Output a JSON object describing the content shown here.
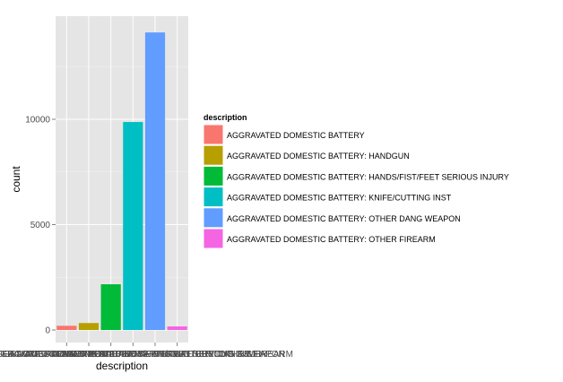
{
  "chart_data": {
    "type": "bar",
    "xlabel": "description",
    "ylabel": "count",
    "ylim": [
      0,
      14800
    ],
    "y_ticks": [
      0,
      5000,
      10000
    ],
    "y_tick_labels": [
      "0",
      "5000",
      "10000"
    ],
    "grid": true,
    "legend_placement": "right",
    "legend_title": "description",
    "categories": [
      "AGGRAVATED DOMESTIC BATTERY",
      "AGGRAVATED DOMESTIC BATTERY: HANDGUN",
      "AGGRAVATED DOMESTIC BATTERY: HANDS/FIST/FEET SERIOUS INJURY",
      "AGGRAVATED DOMESTIC BATTERY: KNIFE/CUTTING INST",
      "AGGRAVATED DOMESTIC BATTERY: OTHER DANG WEAPON",
      "AGGRAVATED DOMESTIC BATTERY: OTHER FIREARM"
    ],
    "values": [
      200,
      330,
      2170,
      9870,
      14120,
      170
    ],
    "colors": [
      "#F8766D",
      "#B79F00",
      "#00BA38",
      "#00BFC4",
      "#619CFF",
      "#F564E3"
    ]
  }
}
